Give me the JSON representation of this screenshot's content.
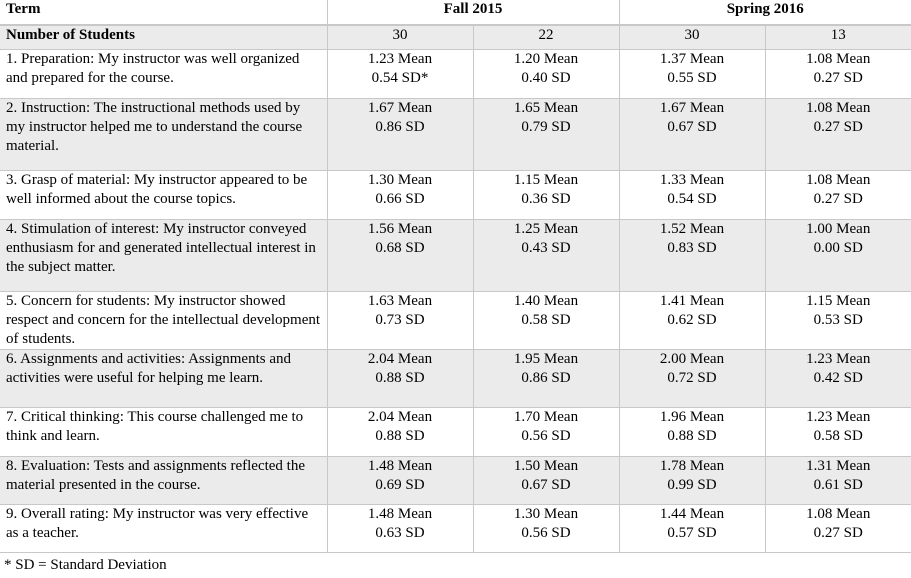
{
  "table": {
    "header": [
      "Term",
      "Fall 2015",
      "Spring 2016"
    ],
    "students": {
      "label": "Number of Students",
      "values": [
        "30",
        "22",
        "30",
        "13"
      ]
    },
    "rows": [
      {
        "label": "1. Preparation: My instructor was well organized and prepared for the course.",
        "cells": [
          [
            "1.23 Mean",
            "0.54 SD*"
          ],
          [
            "1.20 Mean",
            "0.40 SD"
          ],
          [
            "1.37 Mean",
            "0.55 SD"
          ],
          [
            "1.08 Mean",
            "0.27 SD"
          ]
        ]
      },
      {
        "label": "2. Instruction: The instructional methods used by my instructor helped me to understand the course material.",
        "cells": [
          [
            "1.67 Mean",
            "0.86 SD"
          ],
          [
            "1.65 Mean",
            "0.79 SD"
          ],
          [
            "1.67 Mean",
            "0.67 SD"
          ],
          [
            "1.08 Mean",
            "0.27 SD"
          ]
        ]
      },
      {
        "label": "3. Grasp of material: My instructor appeared to be well informed about the course topics.",
        "cells": [
          [
            "1.30 Mean",
            "0.66 SD"
          ],
          [
            "1.15 Mean",
            "0.36 SD"
          ],
          [
            "1.33 Mean",
            "0.54 SD"
          ],
          [
            "1.08 Mean",
            "0.27 SD"
          ]
        ]
      },
      {
        "label": "4. Stimulation of interest: My instructor conveyed enthusiasm for and generated intellectual interest in the subject matter.",
        "cells": [
          [
            "1.56 Mean",
            "0.68 SD"
          ],
          [
            "1.25 Mean",
            "0.43 SD"
          ],
          [
            "1.52 Mean",
            "0.83 SD"
          ],
          [
            "1.00 Mean",
            "0.00 SD"
          ]
        ]
      },
      {
        "label": "5. Concern for students: My instructor showed respect and concern for the intellectual development of students.",
        "cells": [
          [
            "1.63 Mean",
            "0.73 SD"
          ],
          [
            "1.40 Mean",
            "0.58 SD"
          ],
          [
            "1.41 Mean",
            "0.62 SD"
          ],
          [
            "1.15 Mean",
            "0.53 SD"
          ]
        ]
      },
      {
        "label": "6. Assignments and activities: Assignments and activities were useful for helping me learn.",
        "cells": [
          [
            "2.04 Mean",
            "0.88 SD"
          ],
          [
            "1.95 Mean",
            "0.86 SD"
          ],
          [
            "2.00 Mean",
            "0.72 SD"
          ],
          [
            "1.23 Mean",
            "0.42 SD"
          ]
        ]
      },
      {
        "label": "7. Critical thinking: This course challenged me to think and learn.",
        "cells": [
          [
            "2.04 Mean",
            "0.88 SD"
          ],
          [
            "1.70 Mean",
            "0.56 SD"
          ],
          [
            "1.96 Mean",
            "0.88 SD"
          ],
          [
            "1.23 Mean",
            "0.58 SD"
          ]
        ]
      },
      {
        "label": "8. Evaluation: Tests and assignments reflected the material presented in the course.",
        "cells": [
          [
            "1.48 Mean",
            "0.69 SD"
          ],
          [
            "1.50 Mean",
            "0.67 SD"
          ],
          [
            "1.78 Mean",
            "0.99 SD"
          ],
          [
            "1.31 Mean",
            "0.61 SD"
          ]
        ]
      },
      {
        "label": "9. Overall rating: My instructor was very effective as a teacher.",
        "cells": [
          [
            "1.48 Mean",
            "0.63 SD"
          ],
          [
            "1.30 Mean",
            "0.56 SD"
          ],
          [
            "1.44 Mean",
            "0.57 SD"
          ],
          [
            "1.08 Mean",
            "0.27 SD"
          ]
        ]
      }
    ]
  },
  "footnote": "* SD = Standard Deviation"
}
